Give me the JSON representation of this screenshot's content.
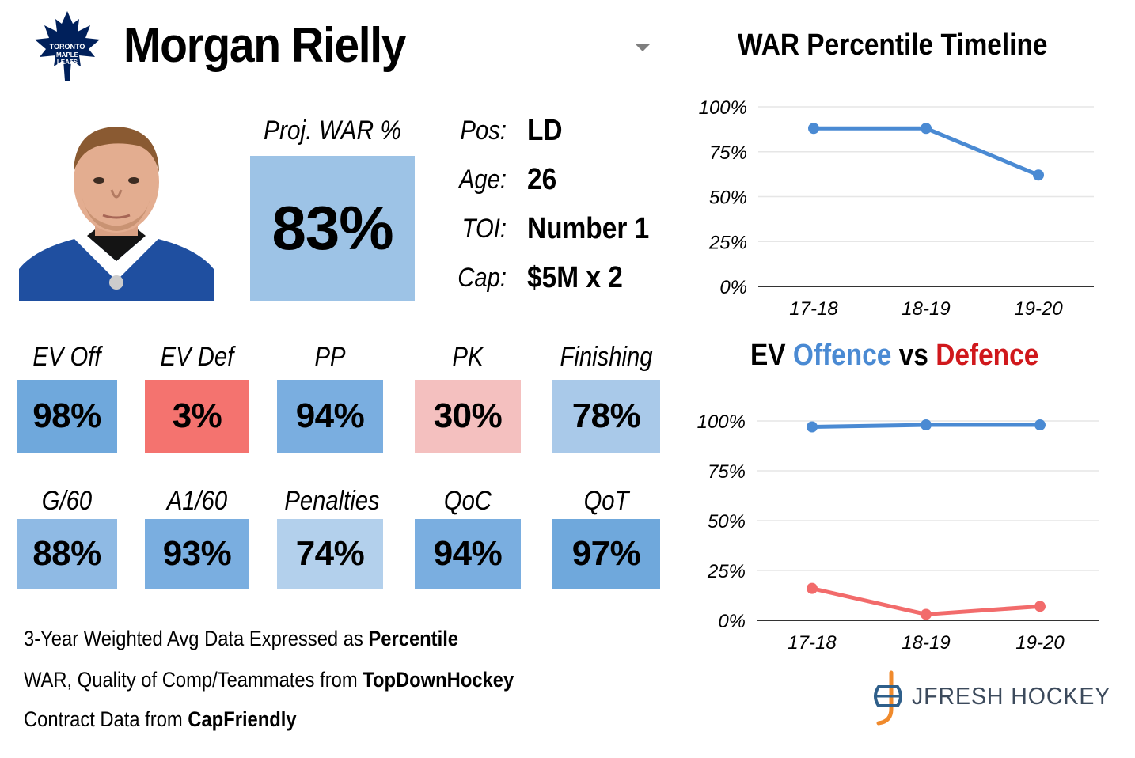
{
  "player": {
    "name": "Morgan Rielly",
    "team_logo_text": [
      "TORONTO",
      "MAPLE",
      "LEAFS"
    ]
  },
  "proj_war": {
    "label": "Proj. WAR %",
    "value": "83%",
    "color": "#9dc3e6"
  },
  "info": [
    {
      "label": "Pos:",
      "value": "LD"
    },
    {
      "label": "Age:",
      "value": "26"
    },
    {
      "label": "TOI:",
      "value": "Number 1"
    },
    {
      "label": "Cap:",
      "value": "$5M x 2"
    }
  ],
  "stats_row1": [
    {
      "label": "EV Off",
      "value": "98%",
      "color": "#6fa8dc"
    },
    {
      "label": "EV Def",
      "value": "3%",
      "color": "#f4736f"
    },
    {
      "label": "PP",
      "value": "94%",
      "color": "#7aaee0"
    },
    {
      "label": "PK",
      "value": "30%",
      "color": "#f4c0bf"
    },
    {
      "label": "Finishing",
      "value": "78%",
      "color": "#a9c9e9"
    }
  ],
  "stats_row2": [
    {
      "label": "G/60",
      "value": "88%",
      "color": "#8fbae4"
    },
    {
      "label": "A1/60",
      "value": "93%",
      "color": "#7aaee0"
    },
    {
      "label": "Penalties",
      "value": "74%",
      "color": "#b3d0ec"
    },
    {
      "label": "QoC",
      "value": "94%",
      "color": "#7aaee0"
    },
    {
      "label": "QoT",
      "value": "97%",
      "color": "#6fa8dc"
    }
  ],
  "footnotes": [
    {
      "text": "3-Year Weighted Avg Data Expressed as ",
      "bold": "Percentile"
    },
    {
      "text": "WAR, Quality of Comp/Teammates from ",
      "bold": "TopDownHockey"
    },
    {
      "text": "Contract Data from ",
      "bold": "CapFriendly"
    }
  ],
  "brand": {
    "name": "JFRESH HOCKEY"
  },
  "chart_data": [
    {
      "type": "line",
      "title": "WAR Percentile Timeline",
      "categories": [
        "17-18",
        "18-19",
        "19-20"
      ],
      "ylim": [
        0,
        100
      ],
      "yticks": [
        "0%",
        "25%",
        "50%",
        "75%",
        "100%"
      ],
      "grid": true,
      "series": [
        {
          "values": [
            88,
            88,
            62
          ],
          "color": "#4a8ad3"
        }
      ]
    },
    {
      "type": "line",
      "title_parts": [
        {
          "text": "EV ",
          "color": "#000000"
        },
        {
          "text": "Offence",
          "color": "#4a8ad3"
        },
        {
          "text": " vs ",
          "color": "#000000"
        },
        {
          "text": "Defence",
          "color": "#d0181c"
        }
      ],
      "categories": [
        "17-18",
        "18-19",
        "19-20"
      ],
      "ylim": [
        0,
        100
      ],
      "yticks": [
        "0%",
        "25%",
        "50%",
        "75%",
        "100%"
      ],
      "grid": true,
      "series": [
        {
          "name": "Offence",
          "values": [
            97,
            98,
            98
          ],
          "color": "#4a8ad3"
        },
        {
          "name": "Defence",
          "values": [
            16,
            3,
            7
          ],
          "color": "#f26b6b"
        }
      ]
    }
  ]
}
